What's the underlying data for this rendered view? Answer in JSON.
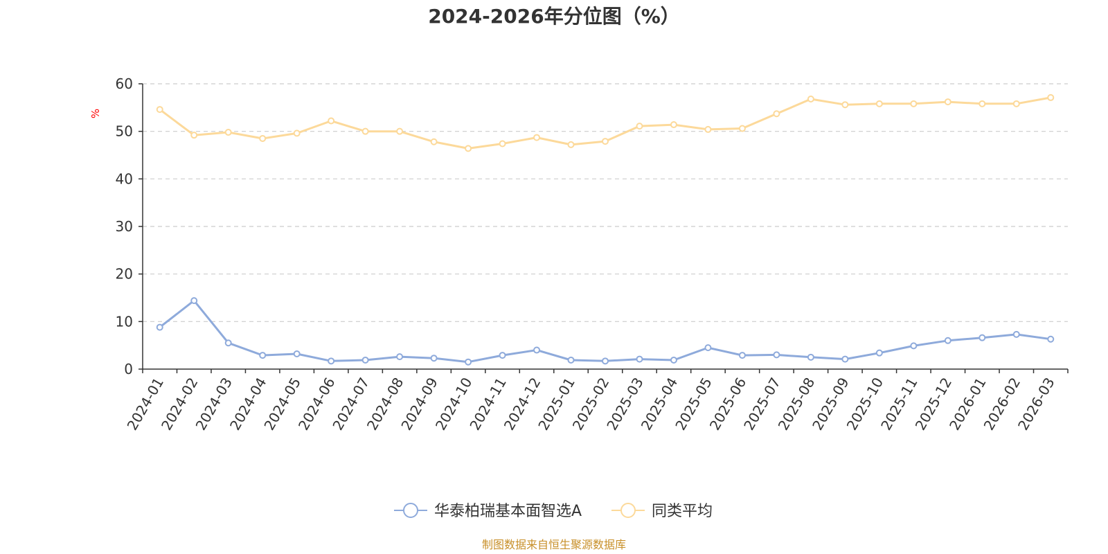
{
  "chart_data": {
    "type": "line",
    "title": "2024-2026年分位图（%）",
    "ylabel": "%",
    "xlabel": "",
    "ylim": [
      0,
      60
    ],
    "yticks": [
      0,
      10,
      20,
      30,
      40,
      50,
      60
    ],
    "grid": true,
    "legend_position": "bottom",
    "categories": [
      "2024-01",
      "2024-02",
      "2024-03",
      "2024-04",
      "2024-05",
      "2024-06",
      "2024-07",
      "2024-08",
      "2024-09",
      "2024-10",
      "2024-11",
      "2024-12",
      "2025-01",
      "2025-02",
      "2025-03",
      "2025-04",
      "2025-05",
      "2025-06",
      "2025-07",
      "2025-08",
      "2025-09",
      "2025-10",
      "2025-11",
      "2025-12",
      "2026-01",
      "2026-02",
      "2026-03"
    ],
    "series": [
      {
        "name": "华泰柏瑞基本面智选A",
        "color": "#8eaadb",
        "values": [
          8.8,
          14.4,
          5.5,
          2.9,
          3.2,
          1.7,
          1.9,
          2.6,
          2.3,
          1.5,
          2.9,
          4.0,
          1.9,
          1.7,
          2.1,
          1.9,
          4.5,
          2.9,
          3.0,
          2.5,
          2.1,
          3.4,
          4.9,
          6.0,
          6.6,
          7.3,
          6.3
        ]
      },
      {
        "name": "同类平均",
        "color": "#fcd99a",
        "values": [
          54.6,
          49.2,
          49.8,
          48.5,
          49.6,
          52.2,
          50.0,
          50.0,
          47.8,
          46.4,
          47.4,
          48.7,
          47.2,
          47.9,
          51.1,
          51.4,
          50.4,
          50.6,
          53.7,
          56.8,
          55.6,
          55.8,
          55.8,
          56.2,
          55.8,
          55.8,
          57.1
        ]
      }
    ]
  },
  "source_text": "制图数据来自恒生聚源数据库"
}
